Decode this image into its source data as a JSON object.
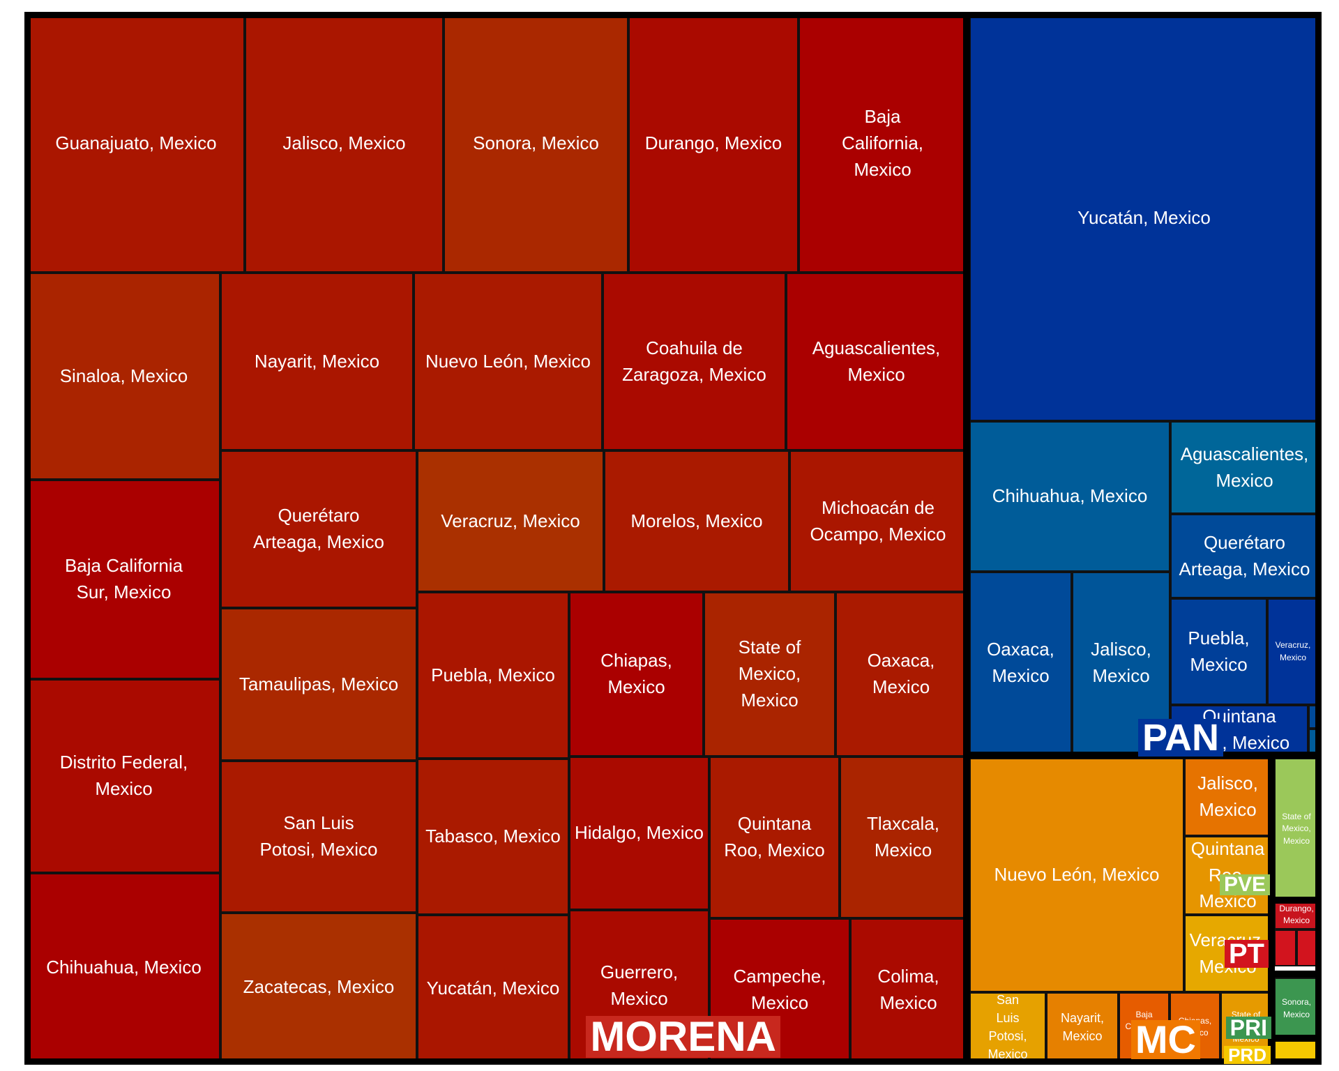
{
  "chart_data": {
    "type": "treemap",
    "groups": [
      {
        "party": "MORENA",
        "color": "#c8281e",
        "states": [
          {
            "label": "Guanajuato, Mexico",
            "color": "#aa1600"
          },
          {
            "label": "Jalisco, Mexico",
            "color": "#aa1600"
          },
          {
            "label": "Sonora, Mexico",
            "color": "#aa2800"
          },
          {
            "label": "Durango, Mexico",
            "color": "#aa0a00"
          },
          {
            "label": "Baja California, Mexico",
            "color": "#aa0000"
          },
          {
            "label": "Sinaloa, Mexico",
            "color": "#aa2400"
          },
          {
            "label": "Nayarit, Mexico",
            "color": "#aa1600"
          },
          {
            "label": "Nuevo León, Mexico",
            "color": "#aa1a00"
          },
          {
            "label": "Coahuila de Zaragoza, Mexico",
            "color": "#aa0a00"
          },
          {
            "label": "Aguascalientes, Mexico",
            "color": "#aa0000"
          },
          {
            "label": "Baja California Sur, Mexico",
            "color": "#aa0000"
          },
          {
            "label": "Querétaro Arteaga, Mexico",
            "color": "#aa1600"
          },
          {
            "label": "Veracruz, Mexico",
            "color": "#aa3000"
          },
          {
            "label": "Morelos, Mexico",
            "color": "#aa1a00"
          },
          {
            "label": "Michoacán de Ocampo, Mexico",
            "color": "#aa1600"
          },
          {
            "label": "Tamaulipas, Mexico",
            "color": "#aa2800"
          },
          {
            "label": "Puebla, Mexico",
            "color": "#aa1600"
          },
          {
            "label": "Chiapas, Mexico",
            "color": "#aa0000"
          },
          {
            "label": "State of Mexico, Mexico",
            "color": "#aa2400"
          },
          {
            "label": "Oaxaca, Mexico",
            "color": "#aa1a00"
          },
          {
            "label": "Distrito Federal, Mexico",
            "color": "#aa0a00"
          },
          {
            "label": "San Luis Potosi, Mexico",
            "color": "#aa1a00"
          },
          {
            "label": "Tabasco, Mexico",
            "color": "#aa1a00"
          },
          {
            "label": "Hidalgo, Mexico",
            "color": "#aa0a00"
          },
          {
            "label": "Quintana Roo, Mexico",
            "color": "#aa1a00"
          },
          {
            "label": "Tlaxcala, Mexico",
            "color": "#aa2400"
          },
          {
            "label": "Chihuahua, Mexico",
            "color": "#aa0000"
          },
          {
            "label": "Zacatecas, Mexico",
            "color": "#aa3000"
          },
          {
            "label": "Yucatán, Mexico",
            "color": "#aa1600"
          },
          {
            "label": "Guerrero, Mexico",
            "color": "#aa0a00"
          },
          {
            "label": "Campeche, Mexico",
            "color": "#aa0000"
          },
          {
            "label": "Colima, Mexico",
            "color": "#aa0a00"
          }
        ]
      },
      {
        "party": "PAN",
        "color": "#003399",
        "states": [
          {
            "label": "Yucatán, Mexico",
            "color": "#003399"
          },
          {
            "label": "Chihuahua, Mexico",
            "color": "#005c99"
          },
          {
            "label": "Aguascalientes, Mexico",
            "color": "#006699"
          },
          {
            "label": "Querétaro Arteaga, Mexico",
            "color": "#004a99"
          },
          {
            "label": "Oaxaca, Mexico",
            "color": "#004a99"
          },
          {
            "label": "Jalisco, Mexico",
            "color": "#005599"
          },
          {
            "label": "Puebla, Mexico",
            "color": "#003f99"
          },
          {
            "label": "Veracruz, Mexico",
            "color": "#003399"
          },
          {
            "label": "Quintana Roo, Mexico",
            "color": "#003399"
          },
          {
            "label": "",
            "color": "#004a99"
          },
          {
            "label": "",
            "color": "#005c99"
          }
        ]
      },
      {
        "party": "MC",
        "color": "#f07800",
        "states": [
          {
            "label": "Nuevo León, Mexico",
            "color": "#e68a00"
          },
          {
            "label": "Jalisco, Mexico",
            "color": "#e67300"
          },
          {
            "label": "Quintana Roo, Mexico",
            "color": "#e69500"
          },
          {
            "label": "Veracruz, Mexico",
            "color": "#e6a800"
          },
          {
            "label": "San Luis Potosi, Mexico",
            "color": "#e6a100"
          },
          {
            "label": "Nayarit, Mexico",
            "color": "#e68000"
          },
          {
            "label": "Baja California, Mexico",
            "color": "#e65c00"
          },
          {
            "label": "Chiapas, Mexico",
            "color": "#e66200"
          },
          {
            "label": "State of Mexico, Mexico",
            "color": "#e69a00"
          }
        ]
      },
      {
        "party": "PVE",
        "color": "#9bc85a",
        "states": [
          {
            "label": "State of Mexico, Mexico",
            "color": "#9bc85a"
          }
        ]
      },
      {
        "party": "PT",
        "color": "#d2141e",
        "states": [
          {
            "label": "Durango, Mexico",
            "color": "#c8141e"
          },
          {
            "label": "",
            "color": "#d2141e"
          },
          {
            "label": "",
            "color": "#d2141e"
          }
        ]
      },
      {
        "party": "PRI",
        "color": "#3c9650",
        "states": [
          {
            "label": "Sonora, Mexico",
            "color": "#3c9650"
          }
        ]
      },
      {
        "party": "PRD",
        "color": "#f5c800",
        "states": [
          {
            "label": "",
            "color": "#f5c800"
          }
        ]
      }
    ]
  }
}
